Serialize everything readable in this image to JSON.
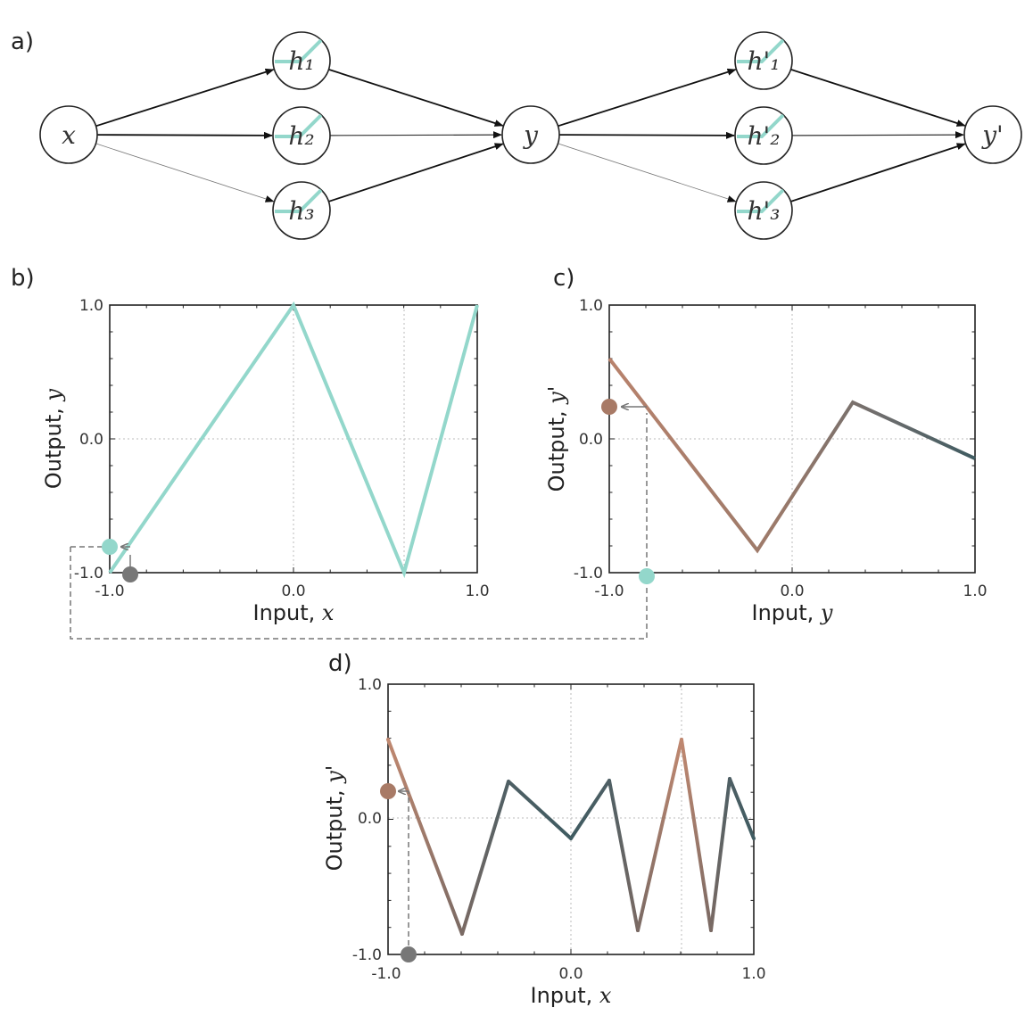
{
  "panels": {
    "a": "a)",
    "b": "b)",
    "c": "c)",
    "d": "d)"
  },
  "network": {
    "nodes": [
      {
        "id": "x",
        "label": "x",
        "relu": false
      },
      {
        "id": "h1",
        "label": "h₁",
        "relu": true
      },
      {
        "id": "h2",
        "label": "h₂",
        "relu": true
      },
      {
        "id": "h3",
        "label": "h₃",
        "relu": true
      },
      {
        "id": "y",
        "label": "y",
        "relu": false
      },
      {
        "id": "hp1",
        "label": "h'₁",
        "relu": true
      },
      {
        "id": "hp2",
        "label": "h'₂",
        "relu": true
      },
      {
        "id": "hp3",
        "label": "h'₃",
        "relu": true
      },
      {
        "id": "yp",
        "label": "y'",
        "relu": false
      }
    ],
    "edges": [
      {
        "from": "x",
        "to": "h1",
        "weight": "strong"
      },
      {
        "from": "x",
        "to": "h2",
        "weight": "strong"
      },
      {
        "from": "x",
        "to": "h3",
        "weight": "weak"
      },
      {
        "from": "h1",
        "to": "y",
        "weight": "strong"
      },
      {
        "from": "h2",
        "to": "y",
        "weight": "medium"
      },
      {
        "from": "h3",
        "to": "y",
        "weight": "strong"
      },
      {
        "from": "y",
        "to": "hp1",
        "weight": "strong"
      },
      {
        "from": "y",
        "to": "hp2",
        "weight": "strong"
      },
      {
        "from": "y",
        "to": "hp3",
        "weight": "weak"
      },
      {
        "from": "hp1",
        "to": "yp",
        "weight": "strong"
      },
      {
        "from": "hp2",
        "to": "yp",
        "weight": "medium"
      },
      {
        "from": "hp3",
        "to": "yp",
        "weight": "strong"
      }
    ]
  },
  "plots": {
    "b": {
      "xlabel": "Input, ",
      "xvar": "x",
      "ylabel": "Output, ",
      "yvar": "y",
      "xticks": [
        "-1.0",
        "0.0",
        "1.0"
      ],
      "yticks": [
        "-1.0",
        "0.0",
        "1.0"
      ]
    },
    "c": {
      "xlabel": "Input, ",
      "xvar": "y",
      "ylabel": "Output, ",
      "yvar": "y'",
      "xticks": [
        "-1.0",
        "0.0",
        "1.0"
      ],
      "yticks": [
        "-1.0",
        "0.0",
        "1.0"
      ]
    },
    "d": {
      "xlabel": "Input, ",
      "xvar": "x",
      "ylabel": "Output, ",
      "yvar": "y'",
      "xticks": [
        "-1.0",
        "0.0",
        "1.0"
      ],
      "yticks": [
        "-1.0",
        "0.0",
        "1.0"
      ]
    }
  },
  "colors": {
    "teal": "#93d7cb",
    "brown": "#b8826c",
    "gray": "#777777",
    "dark_teal": "#3f5b61",
    "grid": "#bbbbbb"
  }
}
